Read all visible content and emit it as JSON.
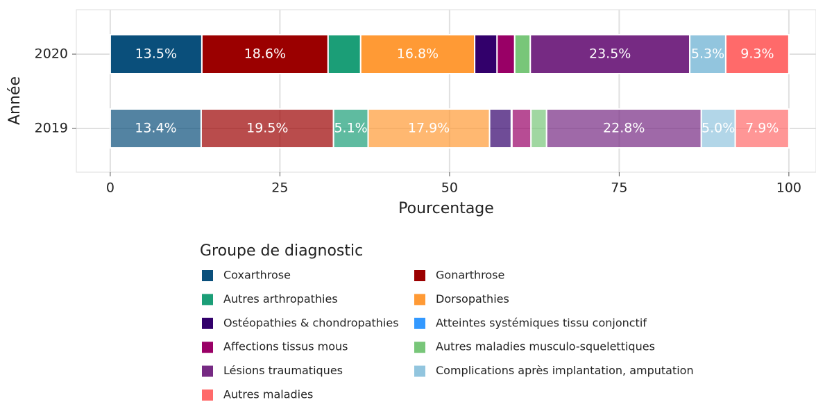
{
  "chart_data": {
    "type": "stacked_bar_horizontal",
    "xlabel": "Pourcentage",
    "ylabel": "Année",
    "legend_title": "Groupe de diagnostic",
    "categories": [
      "2019",
      "2020"
    ],
    "category_opacity": [
      0.7,
      1
    ],
    "xlim": [
      -5,
      104
    ],
    "xticks": [
      0,
      25,
      50,
      75,
      100
    ],
    "grid": true,
    "series": [
      {
        "name": "Coxarthrose",
        "color": "#0a4f7b",
        "values": [
          13.4,
          13.5
        ],
        "value_labels": [
          "13.4%",
          "13.5%"
        ]
      },
      {
        "name": "Gonarthrose",
        "color": "#9b0000",
        "values": [
          19.5,
          18.6
        ],
        "value_labels": [
          "19.5%",
          "18.6%"
        ]
      },
      {
        "name": "Autres arthropathies",
        "color": "#1b9e77",
        "values": [
          5.1,
          4.8
        ],
        "value_labels": [
          "5.1%",
          null
        ]
      },
      {
        "name": "Dorsopathies",
        "color": "#ff9a35",
        "values": [
          17.9,
          16.8
        ],
        "value_labels": [
          "17.9%",
          "16.8%"
        ]
      },
      {
        "name": "Ostéopathies & chondropathies",
        "color": "#32006b",
        "values": [
          3.2,
          3.3
        ],
        "value_labels": [
          null,
          null
        ]
      },
      {
        "name": "Atteintes systémiques tissu conjonctif",
        "color": "#3399ff",
        "values": [
          0.1,
          0
        ],
        "value_labels": [
          null,
          null
        ]
      },
      {
        "name": "Affections tissus mous",
        "color": "#990066",
        "values": [
          2.8,
          2.6
        ],
        "value_labels": [
          null,
          null
        ]
      },
      {
        "name": "Autres maladies musculo-squelettiques",
        "color": "#78c679",
        "values": [
          2.3,
          2.3
        ],
        "value_labels": [
          null,
          null
        ]
      },
      {
        "name": "Lésions traumatiques",
        "color": "#762a83",
        "values": [
          22.8,
          23.5
        ],
        "value_labels": [
          "22.8%",
          "23.5%"
        ]
      },
      {
        "name": "Complications après implantation, amputation",
        "color": "#92c5de",
        "values": [
          5.0,
          5.3
        ],
        "value_labels": [
          "5.0%",
          "5.3%"
        ]
      },
      {
        "name": "Autres maladies",
        "color": "#ff6a6a",
        "values": [
          7.9,
          9.3
        ],
        "value_labels": [
          "7.9%",
          "9.3%"
        ]
      }
    ]
  }
}
